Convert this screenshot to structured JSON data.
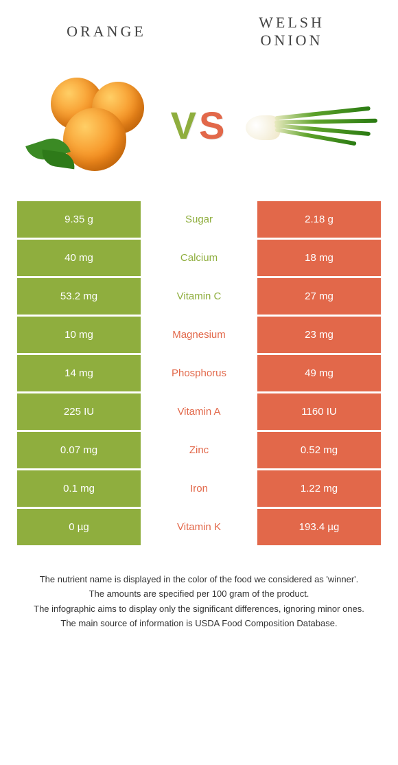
{
  "colors": {
    "left": "#8fae3e",
    "right": "#e2684a"
  },
  "header": {
    "left_title": "ORANGE",
    "right_title_line1": "WELSH",
    "right_title_line2": "ONION",
    "vs_v": "V",
    "vs_s": "S"
  },
  "rows": [
    {
      "left": "9.35 g",
      "label": "Sugar",
      "right": "2.18 g",
      "winner": "left"
    },
    {
      "left": "40 mg",
      "label": "Calcium",
      "right": "18 mg",
      "winner": "left"
    },
    {
      "left": "53.2 mg",
      "label": "Vitamin C",
      "right": "27 mg",
      "winner": "left"
    },
    {
      "left": "10 mg",
      "label": "Magnesium",
      "right": "23 mg",
      "winner": "right"
    },
    {
      "left": "14 mg",
      "label": "Phosphorus",
      "right": "49 mg",
      "winner": "right"
    },
    {
      "left": "225 IU",
      "label": "Vitamin A",
      "right": "1160 IU",
      "winner": "right"
    },
    {
      "left": "0.07 mg",
      "label": "Zinc",
      "right": "0.52 mg",
      "winner": "right"
    },
    {
      "left": "0.1 mg",
      "label": "Iron",
      "right": "1.22 mg",
      "winner": "right"
    },
    {
      "left": "0 µg",
      "label": "Vitamin K",
      "right": "193.4 µg",
      "winner": "right"
    }
  ],
  "footnotes": [
    "The nutrient name is displayed in the color of the food we considered as 'winner'.",
    "The amounts are specified per 100 gram of the product.",
    "The infographic aims to display only the significant differences, ignoring minor ones.",
    "The main source of information is USDA Food Composition Database."
  ]
}
